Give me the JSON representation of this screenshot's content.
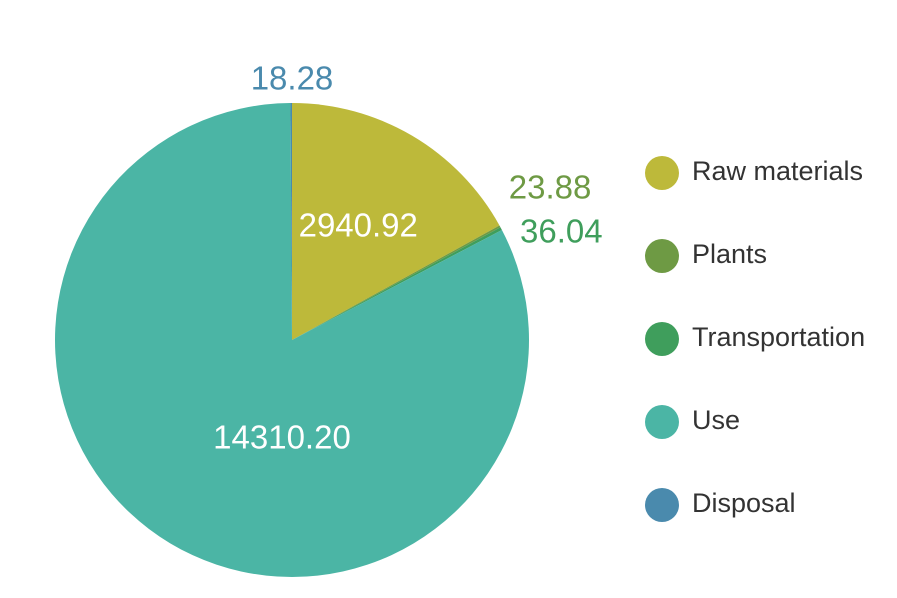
{
  "chart_data": {
    "type": "pie",
    "categories": [
      "Raw materials",
      "Plants",
      "Transportation",
      "Use",
      "Disposal"
    ],
    "values": [
      2940.92,
      23.88,
      36.04,
      14310.2,
      18.28
    ],
    "value_labels": [
      "2940.92",
      "23.88",
      "36.04",
      "14310.20",
      "18.28"
    ],
    "colors": [
      "#bdb93a",
      "#6e9a44",
      "#3f9e5c",
      "#4bb5a5",
      "#4a8aad"
    ],
    "legend": "right"
  }
}
